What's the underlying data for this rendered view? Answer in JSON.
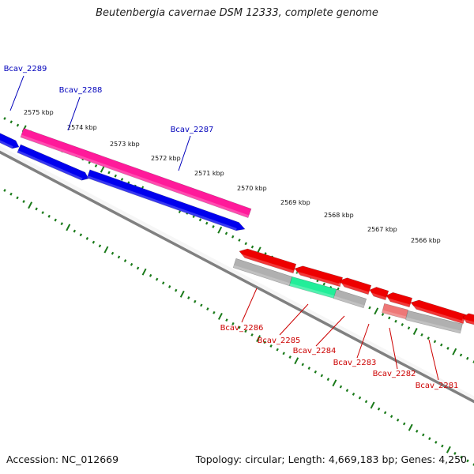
{
  "title": "Beutenbergia cavernae DSM 12333, complete genome",
  "footer": {
    "accession": "Accession: NC_012669",
    "summary": "Topology: circular; Length: 4,669,183 bp; Genes: 4,250"
  },
  "colors": {
    "ticks": "#1a7a1a",
    "backbone": "#808080",
    "forward_label": "#0000bb",
    "reverse_label": "#cc0000"
  },
  "scale_labels": [
    "2575 kbp",
    "2574 kbp",
    "2573 kbp",
    "2572 kbp",
    "2571 kbp",
    "2570 kbp",
    "2569 kbp",
    "2568 kbp",
    "2567 kbp",
    "2566 kbp"
  ],
  "forward_genes": [
    {
      "name": "Bcav_2289",
      "color": "#0000ee"
    },
    {
      "name": "Bcav_2288",
      "color": "#ff1a9a"
    },
    {
      "name": "Bcav_2287",
      "color": "#0000ee"
    }
  ],
  "reverse_genes": [
    {
      "name": "Bcav_2286",
      "color": "#ee0000"
    },
    {
      "name": "Bcav_2285",
      "color": "#ee0000"
    },
    {
      "name": "Bcav_2284",
      "color": "#ee0000"
    },
    {
      "name": "Bcav_2283",
      "color": "#ee0000"
    },
    {
      "name": "Bcav_2282",
      "color": "#ee0000"
    },
    {
      "name": "Bcav_2281",
      "color": "#ee0000"
    }
  ],
  "reverse_features": [
    {
      "color": "#b0b0b0"
    },
    {
      "color": "#22ee99"
    },
    {
      "color": "#b0b0b0"
    },
    {
      "color": "#ee7777"
    },
    {
      "color": "#b0b0b0"
    }
  ]
}
